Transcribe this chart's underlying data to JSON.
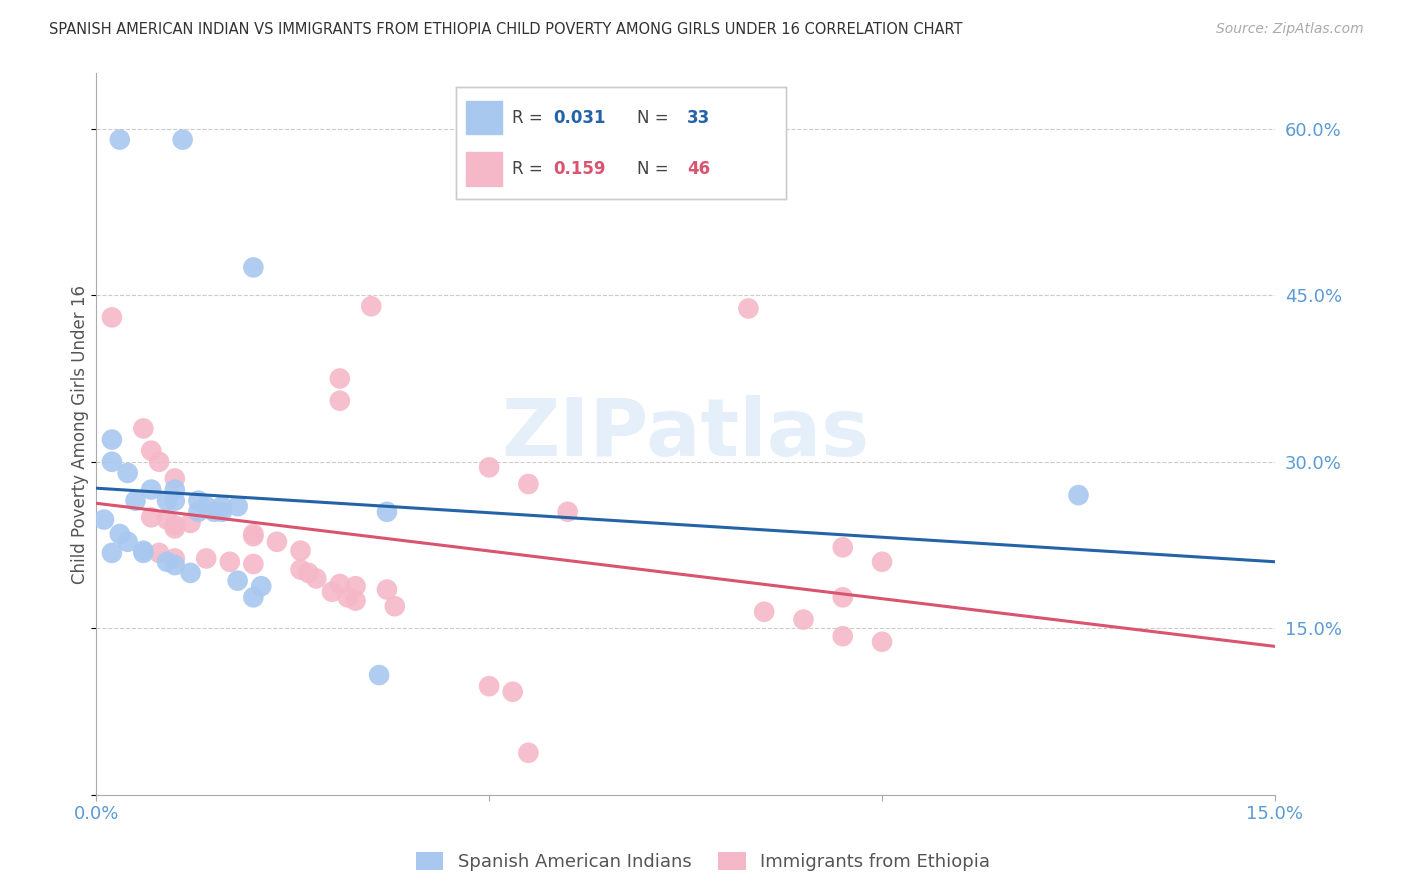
{
  "title": "SPANISH AMERICAN INDIAN VS IMMIGRANTS FROM ETHIOPIA CHILD POVERTY AMONG GIRLS UNDER 16 CORRELATION CHART",
  "source": "Source: ZipAtlas.com",
  "ylabel": "Child Poverty Among Girls Under 16",
  "xlim": [
    0.0,
    0.15
  ],
  "ylim": [
    0.0,
    0.65
  ],
  "yticks": [
    0.0,
    0.15,
    0.3,
    0.45,
    0.6
  ],
  "ytick_labels": [
    "",
    "15.0%",
    "30.0%",
    "45.0%",
    "60.0%"
  ],
  "xticks": [
    0.0,
    0.05,
    0.1,
    0.15
  ],
  "xtick_labels": [
    "0.0%",
    "",
    "",
    "15.0%"
  ],
  "background_color": "#ffffff",
  "grid_color": "#cccccc",
  "axis_color": "#5B9BD5",
  "watermark": "ZIPatlas",
  "blue_color": "#a8c8f0",
  "pink_color": "#f5b8c8",
  "blue_line_color": "#2563a8",
  "pink_line_color": "#d9546e",
  "legend_R1_label": "R = ",
  "legend_R1_val": "0.031",
  "legend_N1_label": "N = ",
  "legend_N1_val": "33",
  "legend_R2_label": "R = ",
  "legend_R2_val": "0.159",
  "legend_N2_label": "N = ",
  "legend_N2_val": "46",
  "blue_scatter": [
    [
      0.003,
      0.59
    ],
    [
      0.011,
      0.59
    ],
    [
      0.02,
      0.475
    ],
    [
      0.002,
      0.32
    ],
    [
      0.002,
      0.3
    ],
    [
      0.004,
      0.29
    ],
    [
      0.007,
      0.275
    ],
    [
      0.01,
      0.275
    ],
    [
      0.005,
      0.265
    ],
    [
      0.009,
      0.265
    ],
    [
      0.01,
      0.265
    ],
    [
      0.013,
      0.265
    ],
    [
      0.014,
      0.26
    ],
    [
      0.013,
      0.255
    ],
    [
      0.015,
      0.255
    ],
    [
      0.016,
      0.255
    ],
    [
      0.016,
      0.26
    ],
    [
      0.018,
      0.26
    ],
    [
      0.037,
      0.255
    ],
    [
      0.001,
      0.248
    ],
    [
      0.003,
      0.235
    ],
    [
      0.004,
      0.228
    ],
    [
      0.006,
      0.22
    ],
    [
      0.002,
      0.218
    ],
    [
      0.006,
      0.218
    ],
    [
      0.009,
      0.21
    ],
    [
      0.01,
      0.207
    ],
    [
      0.012,
      0.2
    ],
    [
      0.018,
      0.193
    ],
    [
      0.021,
      0.188
    ],
    [
      0.02,
      0.178
    ],
    [
      0.125,
      0.27
    ],
    [
      0.036,
      0.108
    ]
  ],
  "pink_scatter": [
    [
      0.035,
      0.44
    ],
    [
      0.002,
      0.43
    ],
    [
      0.031,
      0.375
    ],
    [
      0.031,
      0.355
    ],
    [
      0.006,
      0.33
    ],
    [
      0.007,
      0.31
    ],
    [
      0.008,
      0.3
    ],
    [
      0.05,
      0.295
    ],
    [
      0.01,
      0.285
    ],
    [
      0.055,
      0.28
    ],
    [
      0.06,
      0.255
    ],
    [
      0.007,
      0.25
    ],
    [
      0.009,
      0.248
    ],
    [
      0.012,
      0.245
    ],
    [
      0.01,
      0.243
    ],
    [
      0.01,
      0.24
    ],
    [
      0.02,
      0.235
    ],
    [
      0.02,
      0.233
    ],
    [
      0.023,
      0.228
    ],
    [
      0.026,
      0.22
    ],
    [
      0.008,
      0.218
    ],
    [
      0.01,
      0.213
    ],
    [
      0.014,
      0.213
    ],
    [
      0.017,
      0.21
    ],
    [
      0.02,
      0.208
    ],
    [
      0.026,
      0.203
    ],
    [
      0.027,
      0.2
    ],
    [
      0.028,
      0.195
    ],
    [
      0.031,
      0.19
    ],
    [
      0.033,
      0.188
    ],
    [
      0.037,
      0.185
    ],
    [
      0.03,
      0.183
    ],
    [
      0.032,
      0.178
    ],
    [
      0.033,
      0.175
    ],
    [
      0.038,
      0.17
    ],
    [
      0.083,
      0.438
    ],
    [
      0.05,
      0.098
    ],
    [
      0.053,
      0.093
    ],
    [
      0.055,
      0.038
    ],
    [
      0.095,
      0.223
    ],
    [
      0.1,
      0.21
    ],
    [
      0.095,
      0.178
    ],
    [
      0.085,
      0.165
    ],
    [
      0.09,
      0.158
    ],
    [
      0.095,
      0.143
    ],
    [
      0.1,
      0.138
    ]
  ]
}
